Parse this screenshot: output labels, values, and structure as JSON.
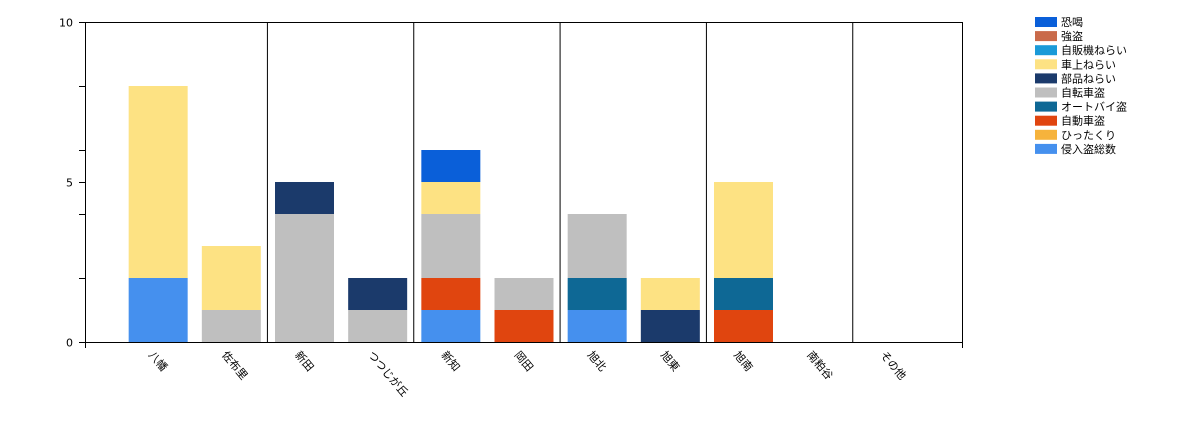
{
  "chart_data": {
    "type": "bar",
    "stacked": true,
    "categories": [
      "八幡",
      "佐布里",
      "新田",
      "つつじが丘",
      "新知",
      "岡田",
      "旭北",
      "旭東",
      "旭南",
      "南粕谷",
      "その他"
    ],
    "ylim": [
      0,
      10
    ],
    "yticks": [
      0,
      5,
      10
    ],
    "grid": "vertical lines at alternate categories",
    "legend_position": "top-right",
    "series": [
      {
        "name": "侵入盗総数",
        "color": "#4590ee",
        "values": [
          2,
          0,
          0,
          0,
          1,
          0,
          1,
          0,
          0,
          0,
          0
        ]
      },
      {
        "name": "ひったくり",
        "color": "#f6b33c",
        "values": [
          0,
          0,
          0,
          0,
          0,
          0,
          0,
          0,
          0,
          0,
          0
        ]
      },
      {
        "name": "自動車盗",
        "color": "#e0450f",
        "values": [
          0,
          0,
          0,
          0,
          1,
          1,
          0,
          0,
          1,
          0,
          0
        ]
      },
      {
        "name": "オートバイ盗",
        "color": "#0e6895",
        "values": [
          0,
          0,
          0,
          0,
          0,
          0,
          1,
          0,
          1,
          0,
          0
        ]
      },
      {
        "name": "自転車盗",
        "color": "#bfbfbf",
        "values": [
          0,
          1,
          4,
          1,
          2,
          1,
          2,
          0,
          0,
          0,
          0
        ]
      },
      {
        "name": "部品ねらい",
        "color": "#1b3a6b",
        "values": [
          0,
          0,
          1,
          1,
          0,
          0,
          0,
          1,
          0,
          0,
          0
        ]
      },
      {
        "name": "車上ねらい",
        "color": "#fde283",
        "values": [
          6,
          2,
          0,
          0,
          1,
          0,
          0,
          1,
          3,
          0,
          0
        ]
      },
      {
        "name": "自販機ねらい",
        "color": "#1a9ad8",
        "values": [
          0,
          0,
          0,
          0,
          0,
          0,
          0,
          0,
          0,
          0,
          0
        ]
      },
      {
        "name": "強盗",
        "color": "#c96a4a",
        "values": [
          0,
          0,
          0,
          0,
          0,
          0,
          0,
          0,
          0,
          0,
          0
        ]
      },
      {
        "name": "恐喝",
        "color": "#0a5fd9",
        "values": [
          0,
          0,
          0,
          0,
          1,
          0,
          0,
          0,
          0,
          0,
          0
        ]
      }
    ],
    "legend_order": [
      "恐喝",
      "強盗",
      "自販機ねらい",
      "車上ねらい",
      "部品ねらい",
      "自転車盗",
      "オートバイ盗",
      "自動車盗",
      "ひったくり",
      "侵入盗総数"
    ]
  }
}
